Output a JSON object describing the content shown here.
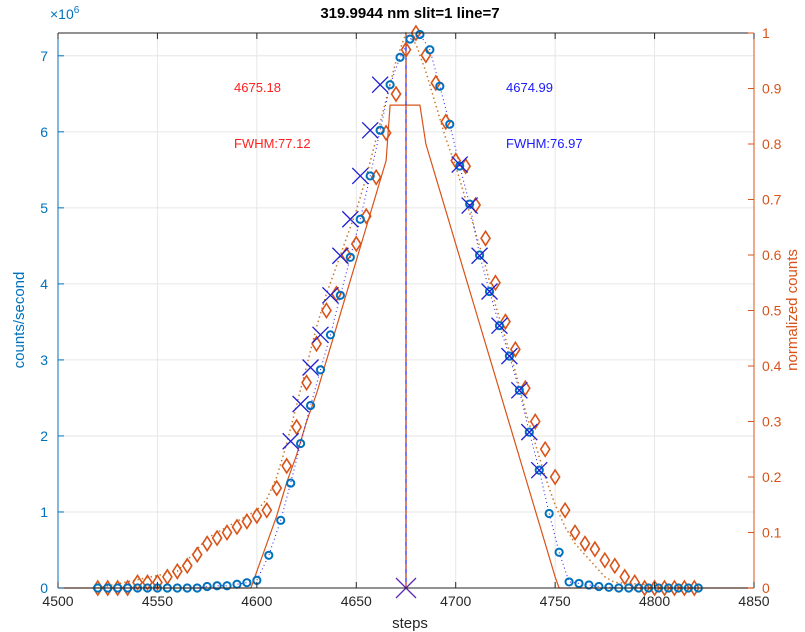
{
  "chart_data": {
    "type": "scatter",
    "title": "319.9944 nm  slit=1 line=7",
    "xlabel": "steps",
    "ylabel_left": "counts/second",
    "ylabel_right": "normalized counts",
    "left_axis_multiplier": "×10^6",
    "xlim": [
      4500,
      4850
    ],
    "ylim_left": [
      0,
      7.3
    ],
    "ylim_right": [
      0,
      1
    ],
    "x_ticks": [
      4500,
      4550,
      4600,
      4650,
      4700,
      4750,
      4800,
      4850
    ],
    "y_ticks_left": [
      0,
      1,
      2,
      3,
      4,
      5,
      6,
      7
    ],
    "y_ticks_right": [
      0,
      0.1,
      0.2,
      0.3,
      0.4,
      0.5,
      0.6,
      0.7,
      0.8,
      0.9,
      1
    ],
    "grid": true,
    "colors": {
      "left_axis": "#0072BD",
      "right_axis": "#D95319",
      "left_annot": "#ff2020",
      "right_annot": "#1a1aff",
      "blue_x": "#2020d0",
      "center_line": "#7e2f8e",
      "dotted_fit": "#c8782a"
    },
    "annotations": {
      "left_center": "4675.18",
      "left_fwhm": "FWHM:77.12",
      "right_center": "4674.99",
      "right_fwhm": "FWHM:76.97"
    },
    "center_line_x": 4675,
    "series": [
      {
        "marker": "circle",
        "axis": "left",
        "x": [
          4520,
          4525,
          4530,
          4535,
          4540,
          4545,
          4550,
          4555,
          4560,
          4565,
          4570,
          4575,
          4580,
          4585,
          4590,
          4595,
          4600,
          4606,
          4612,
          4617,
          4622,
          4627,
          4632,
          4637,
          4642,
          4647,
          4652,
          4657,
          4662,
          4667,
          4672,
          4677,
          4682,
          4687,
          4692,
          4697,
          4702,
          4707,
          4712,
          4717,
          4722,
          4727,
          4732,
          4737,
          4742,
          4747,
          4752,
          4757,
          4762,
          4767,
          4772,
          4777,
          4782,
          4787,
          4792,
          4797,
          4802,
          4807,
          4812,
          4817,
          4822
        ],
        "values": [
          0,
          0,
          0,
          0,
          0,
          0,
          0,
          0,
          0,
          0,
          0,
          0.02,
          0.03,
          0.03,
          0.05,
          0.07,
          0.1,
          0.43,
          0.89,
          1.38,
          1.9,
          2.4,
          2.87,
          3.33,
          3.85,
          4.35,
          4.85,
          5.42,
          6.02,
          6.62,
          6.98,
          7.22,
          7.28,
          7.08,
          6.6,
          6.1,
          5.55,
          5.05,
          4.38,
          3.9,
          3.45,
          3.05,
          2.6,
          2.05,
          1.55,
          0.98,
          0.47,
          0.08,
          0.06,
          0.04,
          0.02,
          0.01,
          0,
          0,
          0,
          0,
          0,
          0,
          0,
          0,
          0
        ]
      },
      {
        "marker": "x",
        "axis": "left",
        "x": [
          4617,
          4622,
          4627,
          4632,
          4637,
          4642,
          4647,
          4652,
          4657,
          4662,
          4702,
          4707,
          4712,
          4717,
          4722,
          4727,
          4732,
          4737,
          4742,
          4675
        ],
        "values": [
          1.93,
          2.42,
          2.9,
          3.33,
          3.85,
          4.37,
          4.85,
          5.42,
          6.02,
          6.62,
          5.57,
          5.03,
          4.37,
          3.9,
          3.45,
          3.05,
          2.6,
          2.05,
          1.55,
          0
        ]
      },
      {
        "marker": "diamond",
        "axis": "right",
        "x": [
          4520,
          4525,
          4530,
          4535,
          4540,
          4545,
          4550,
          4555,
          4560,
          4565,
          4570,
          4575,
          4580,
          4585,
          4590,
          4595,
          4600,
          4605,
          4610,
          4615,
          4620,
          4625,
          4630,
          4635,
          4640,
          4645,
          4650,
          4655,
          4660,
          4665,
          4670,
          4675,
          4680,
          4685,
          4690,
          4695,
          4700,
          4705,
          4710,
          4715,
          4720,
          4725,
          4730,
          4735,
          4740,
          4745,
          4750,
          4755,
          4760,
          4765,
          4770,
          4775,
          4780,
          4785,
          4790,
          4795,
          4800,
          4805,
          4810,
          4815,
          4820
        ],
        "values": [
          0,
          0,
          0,
          0,
          0.01,
          0.01,
          0.01,
          0.02,
          0.03,
          0.04,
          0.06,
          0.08,
          0.09,
          0.1,
          0.11,
          0.12,
          0.13,
          0.14,
          0.18,
          0.22,
          0.29,
          0.37,
          0.44,
          0.5,
          0.53,
          0.6,
          0.62,
          0.67,
          0.74,
          0.82,
          0.89,
          0.97,
          1.0,
          0.96,
          0.91,
          0.84,
          0.77,
          0.76,
          0.69,
          0.63,
          0.55,
          0.48,
          0.43,
          0.36,
          0.3,
          0.25,
          0.2,
          0.14,
          0.1,
          0.08,
          0.07,
          0.05,
          0.04,
          0.02,
          0.01,
          0,
          0,
          0,
          0,
          0,
          0
        ]
      },
      {
        "line": "solid",
        "axis": "right",
        "x": [
          4500,
          4597,
          4600,
          4605,
          4610,
          4615,
          4620,
          4625,
          4630,
          4635,
          4640,
          4645,
          4650,
          4655,
          4660,
          4665,
          4667,
          4682,
          4685,
          4690,
          4695,
          4700,
          4705,
          4710,
          4715,
          4720,
          4725,
          4730,
          4735,
          4740,
          4745,
          4750,
          4752,
          4850
        ],
        "values": [
          0,
          0,
          0.03,
          0.08,
          0.13,
          0.19,
          0.24,
          0.3,
          0.35,
          0.41,
          0.47,
          0.53,
          0.59,
          0.65,
          0.71,
          0.77,
          0.87,
          0.87,
          0.8,
          0.74,
          0.68,
          0.62,
          0.56,
          0.5,
          0.44,
          0.38,
          0.32,
          0.26,
          0.2,
          0.14,
          0.08,
          0.02,
          0,
          0
        ]
      },
      {
        "line": "dotted",
        "axis": "right",
        "x": [
          4520,
          4560,
          4565,
          4570,
          4575,
          4580,
          4585,
          4590,
          4595,
          4600,
          4605,
          4610,
          4615,
          4620,
          4625,
          4630,
          4635,
          4640,
          4645,
          4650,
          4655,
          4660,
          4665,
          4670,
          4675,
          4680,
          4685,
          4690,
          4695,
          4700,
          4705,
          4710,
          4715,
          4720,
          4725,
          4730,
          4735,
          4740,
          4745,
          4750,
          4755,
          4760,
          4765,
          4770,
          4775,
          4780,
          4820
        ],
        "values": [
          0,
          0.03,
          0.05,
          0.07,
          0.09,
          0.1,
          0.11,
          0.12,
          0.13,
          0.14,
          0.16,
          0.2,
          0.26,
          0.33,
          0.4,
          0.47,
          0.53,
          0.58,
          0.63,
          0.68,
          0.74,
          0.81,
          0.88,
          0.95,
          1.0,
          0.98,
          0.93,
          0.87,
          0.81,
          0.76,
          0.7,
          0.64,
          0.58,
          0.51,
          0.45,
          0.39,
          0.32,
          0.26,
          0.2,
          0.15,
          0.11,
          0.08,
          0.06,
          0.04,
          0.02,
          0.01,
          0
        ]
      }
    ]
  }
}
